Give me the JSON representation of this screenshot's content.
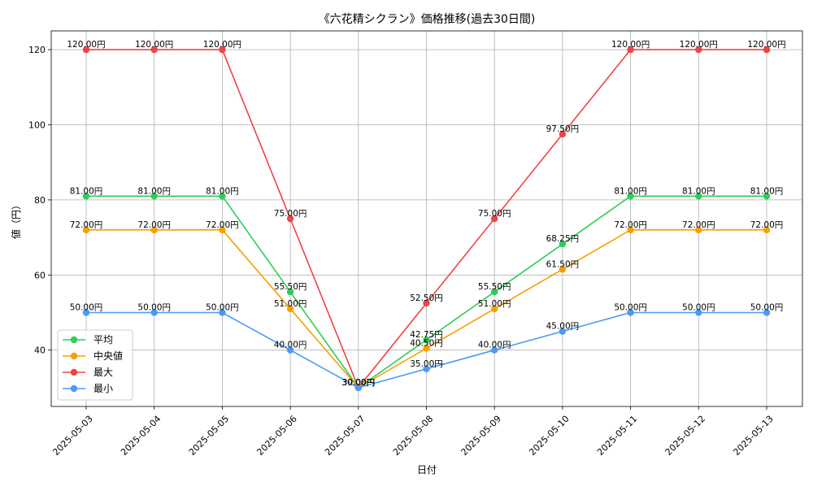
{
  "chart_data": {
    "type": "line",
    "title": "《六花精シクラン》価格推移(過去30日間)",
    "xlabel": "日付",
    "ylabel": "値（円）",
    "categories": [
      "2025-05-03",
      "2025-05-04",
      "2025-05-05",
      "2025-05-06",
      "2025-05-07",
      "2025-05-08",
      "2025-05-09",
      "2025-05-10",
      "2025-05-11",
      "2025-05-12",
      "2025-05-13"
    ],
    "ylim": [
      25,
      125
    ],
    "yticks": [
      40,
      60,
      80,
      100,
      120
    ],
    "grid": true,
    "legend_position": "bottom-left",
    "value_suffix": "円",
    "series": [
      {
        "name": "平均",
        "color": "#2ecc59",
        "values": [
          81.0,
          81.0,
          81.0,
          55.5,
          30.0,
          42.75,
          55.5,
          68.25,
          81.0,
          81.0,
          81.0
        ]
      },
      {
        "name": "中央値",
        "color": "#f5a000",
        "values": [
          72.0,
          72.0,
          72.0,
          51.0,
          30.0,
          40.5,
          51.0,
          61.5,
          72.0,
          72.0,
          72.0
        ]
      },
      {
        "name": "最大",
        "color": "#ef4444",
        "values": [
          120.0,
          120.0,
          120.0,
          75.0,
          30.0,
          52.5,
          75.0,
          97.5,
          120.0,
          120.0,
          120.0
        ]
      },
      {
        "name": "最小",
        "color": "#4a9af5",
        "values": [
          50.0,
          50.0,
          50.0,
          40.0,
          30.0,
          35.0,
          40.0,
          45.0,
          50.0,
          50.0,
          50.0
        ]
      }
    ]
  }
}
